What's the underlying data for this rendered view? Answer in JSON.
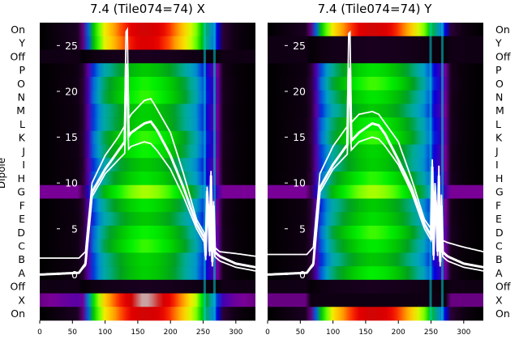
{
  "chart_data": [
    {
      "type": "heatmap",
      "title": "7.4 (Tile074=74) X",
      "ylabel": "Dipole",
      "x_ticks": [
        0,
        50,
        100,
        150,
        200,
        250,
        300
      ],
      "xlim": [
        0,
        330
      ],
      "overlay_ylim": [
        -5,
        27.5
      ],
      "overlay_yticks": [
        0,
        5,
        10,
        15,
        20,
        25
      ],
      "rows": [
        "On",
        "Y",
        "Off",
        "P",
        "O",
        "N",
        "M",
        "L",
        "K",
        "J",
        "I",
        "H",
        "G",
        "F",
        "E",
        "D",
        "C",
        "B",
        "A",
        "Off",
        "X",
        "On"
      ],
      "spectrum_shape": {
        "x": [
          0,
          60,
          70,
          80,
          100,
          120,
          140,
          160,
          180,
          200,
          220,
          240,
          248,
          260,
          270,
          280,
          300,
          330
        ],
        "level": [
          0.0,
          0.02,
          0.07,
          0.24,
          0.38,
          0.44,
          0.49,
          0.52,
          0.5,
          0.46,
          0.4,
          0.32,
          0.26,
          0.18,
          0.14,
          0.03,
          0.01,
          0.0
        ]
      },
      "lines": [
        {
          "x": [
            0,
            60,
            70,
            80,
            100,
            120,
            140,
            160,
            170,
            180,
            200,
            220,
            240,
            260,
            275,
            300,
            330
          ],
          "y": [
            1.8,
            1.8,
            2.5,
            10.0,
            13.0,
            15.0,
            17.5,
            19.0,
            19.2,
            18.0,
            15.5,
            11.0,
            6.0,
            3.5,
            2.5,
            2.3,
            2.0
          ]
        },
        {
          "x": [
            0,
            60,
            70,
            80,
            100,
            120,
            140,
            160,
            170,
            180,
            200,
            220,
            240,
            260,
            275,
            300,
            330
          ],
          "y": [
            0,
            0.2,
            1.2,
            9.0,
            11.5,
            13.5,
            15.5,
            16.5,
            16.7,
            15.7,
            13.0,
            9.5,
            5.5,
            3.0,
            2.0,
            1.2,
            0.8
          ]
        },
        {
          "x": [
            0,
            60,
            70,
            80,
            100,
            120,
            140,
            160,
            170,
            180,
            200,
            220,
            240,
            260,
            275,
            300,
            330
          ],
          "y": [
            0,
            0.2,
            1.0,
            8.5,
            11.0,
            12.5,
            14.0,
            14.5,
            14.3,
            13.5,
            11.5,
            8.5,
            5.0,
            2.5,
            1.5,
            0.8,
            0.4
          ]
        }
      ],
      "spike_x": 133,
      "burst_x": [
        253,
        268
      ]
    },
    {
      "type": "heatmap",
      "title": "7.4 (Tile074=74) Y",
      "ylabel": "",
      "x_ticks": [
        0,
        50,
        100,
        150,
        200,
        250,
        300
      ],
      "xlim": [
        0,
        330
      ],
      "overlay_ylim": [
        -5,
        27.5
      ],
      "overlay_yticks": [
        0,
        5,
        10,
        15,
        20,
        25
      ],
      "rows": [
        "On",
        "Y",
        "Off",
        "P",
        "O",
        "N",
        "M",
        "L",
        "K",
        "J",
        "I",
        "H",
        "G",
        "F",
        "E",
        "D",
        "C",
        "B",
        "A",
        "Off",
        "X",
        "On"
      ],
      "spectrum_shape": {
        "x": [
          0,
          60,
          70,
          80,
          100,
          120,
          140,
          160,
          180,
          200,
          220,
          240,
          248,
          260,
          270,
          280,
          300,
          330
        ],
        "level": [
          0.0,
          0.02,
          0.07,
          0.24,
          0.38,
          0.44,
          0.49,
          0.52,
          0.5,
          0.46,
          0.4,
          0.32,
          0.26,
          0.18,
          0.14,
          0.03,
          0.01,
          0.0
        ]
      },
      "lines": [
        {
          "x": [
            0,
            60,
            70,
            80,
            100,
            120,
            140,
            160,
            170,
            180,
            200,
            220,
            240,
            260,
            275,
            300,
            330
          ],
          "y": [
            2.2,
            2.2,
            3.0,
            11.0,
            14.0,
            16.0,
            17.5,
            17.8,
            17.5,
            16.5,
            14.5,
            10.5,
            6.0,
            4.0,
            3.5,
            3.0,
            2.5
          ]
        },
        {
          "x": [
            0,
            60,
            70,
            80,
            100,
            120,
            140,
            160,
            170,
            180,
            200,
            220,
            240,
            260,
            275,
            300,
            330
          ],
          "y": [
            0,
            0.2,
            1.2,
            9.5,
            12.0,
            14.0,
            15.5,
            16.5,
            16.3,
            15.3,
            12.5,
            9.5,
            5.5,
            3.0,
            2.0,
            1.2,
            0.8
          ]
        },
        {
          "x": [
            0,
            60,
            70,
            80,
            100,
            120,
            140,
            160,
            170,
            180,
            200,
            220,
            240,
            260,
            275,
            300,
            330
          ],
          "y": [
            0,
            0.2,
            1.0,
            9.0,
            11.5,
            13.0,
            14.5,
            15.0,
            14.8,
            14.0,
            12.0,
            9.0,
            5.0,
            2.5,
            1.5,
            0.8,
            0.4
          ]
        }
      ],
      "spike_x": 125,
      "burst_x": [
        250,
        268
      ]
    }
  ]
}
